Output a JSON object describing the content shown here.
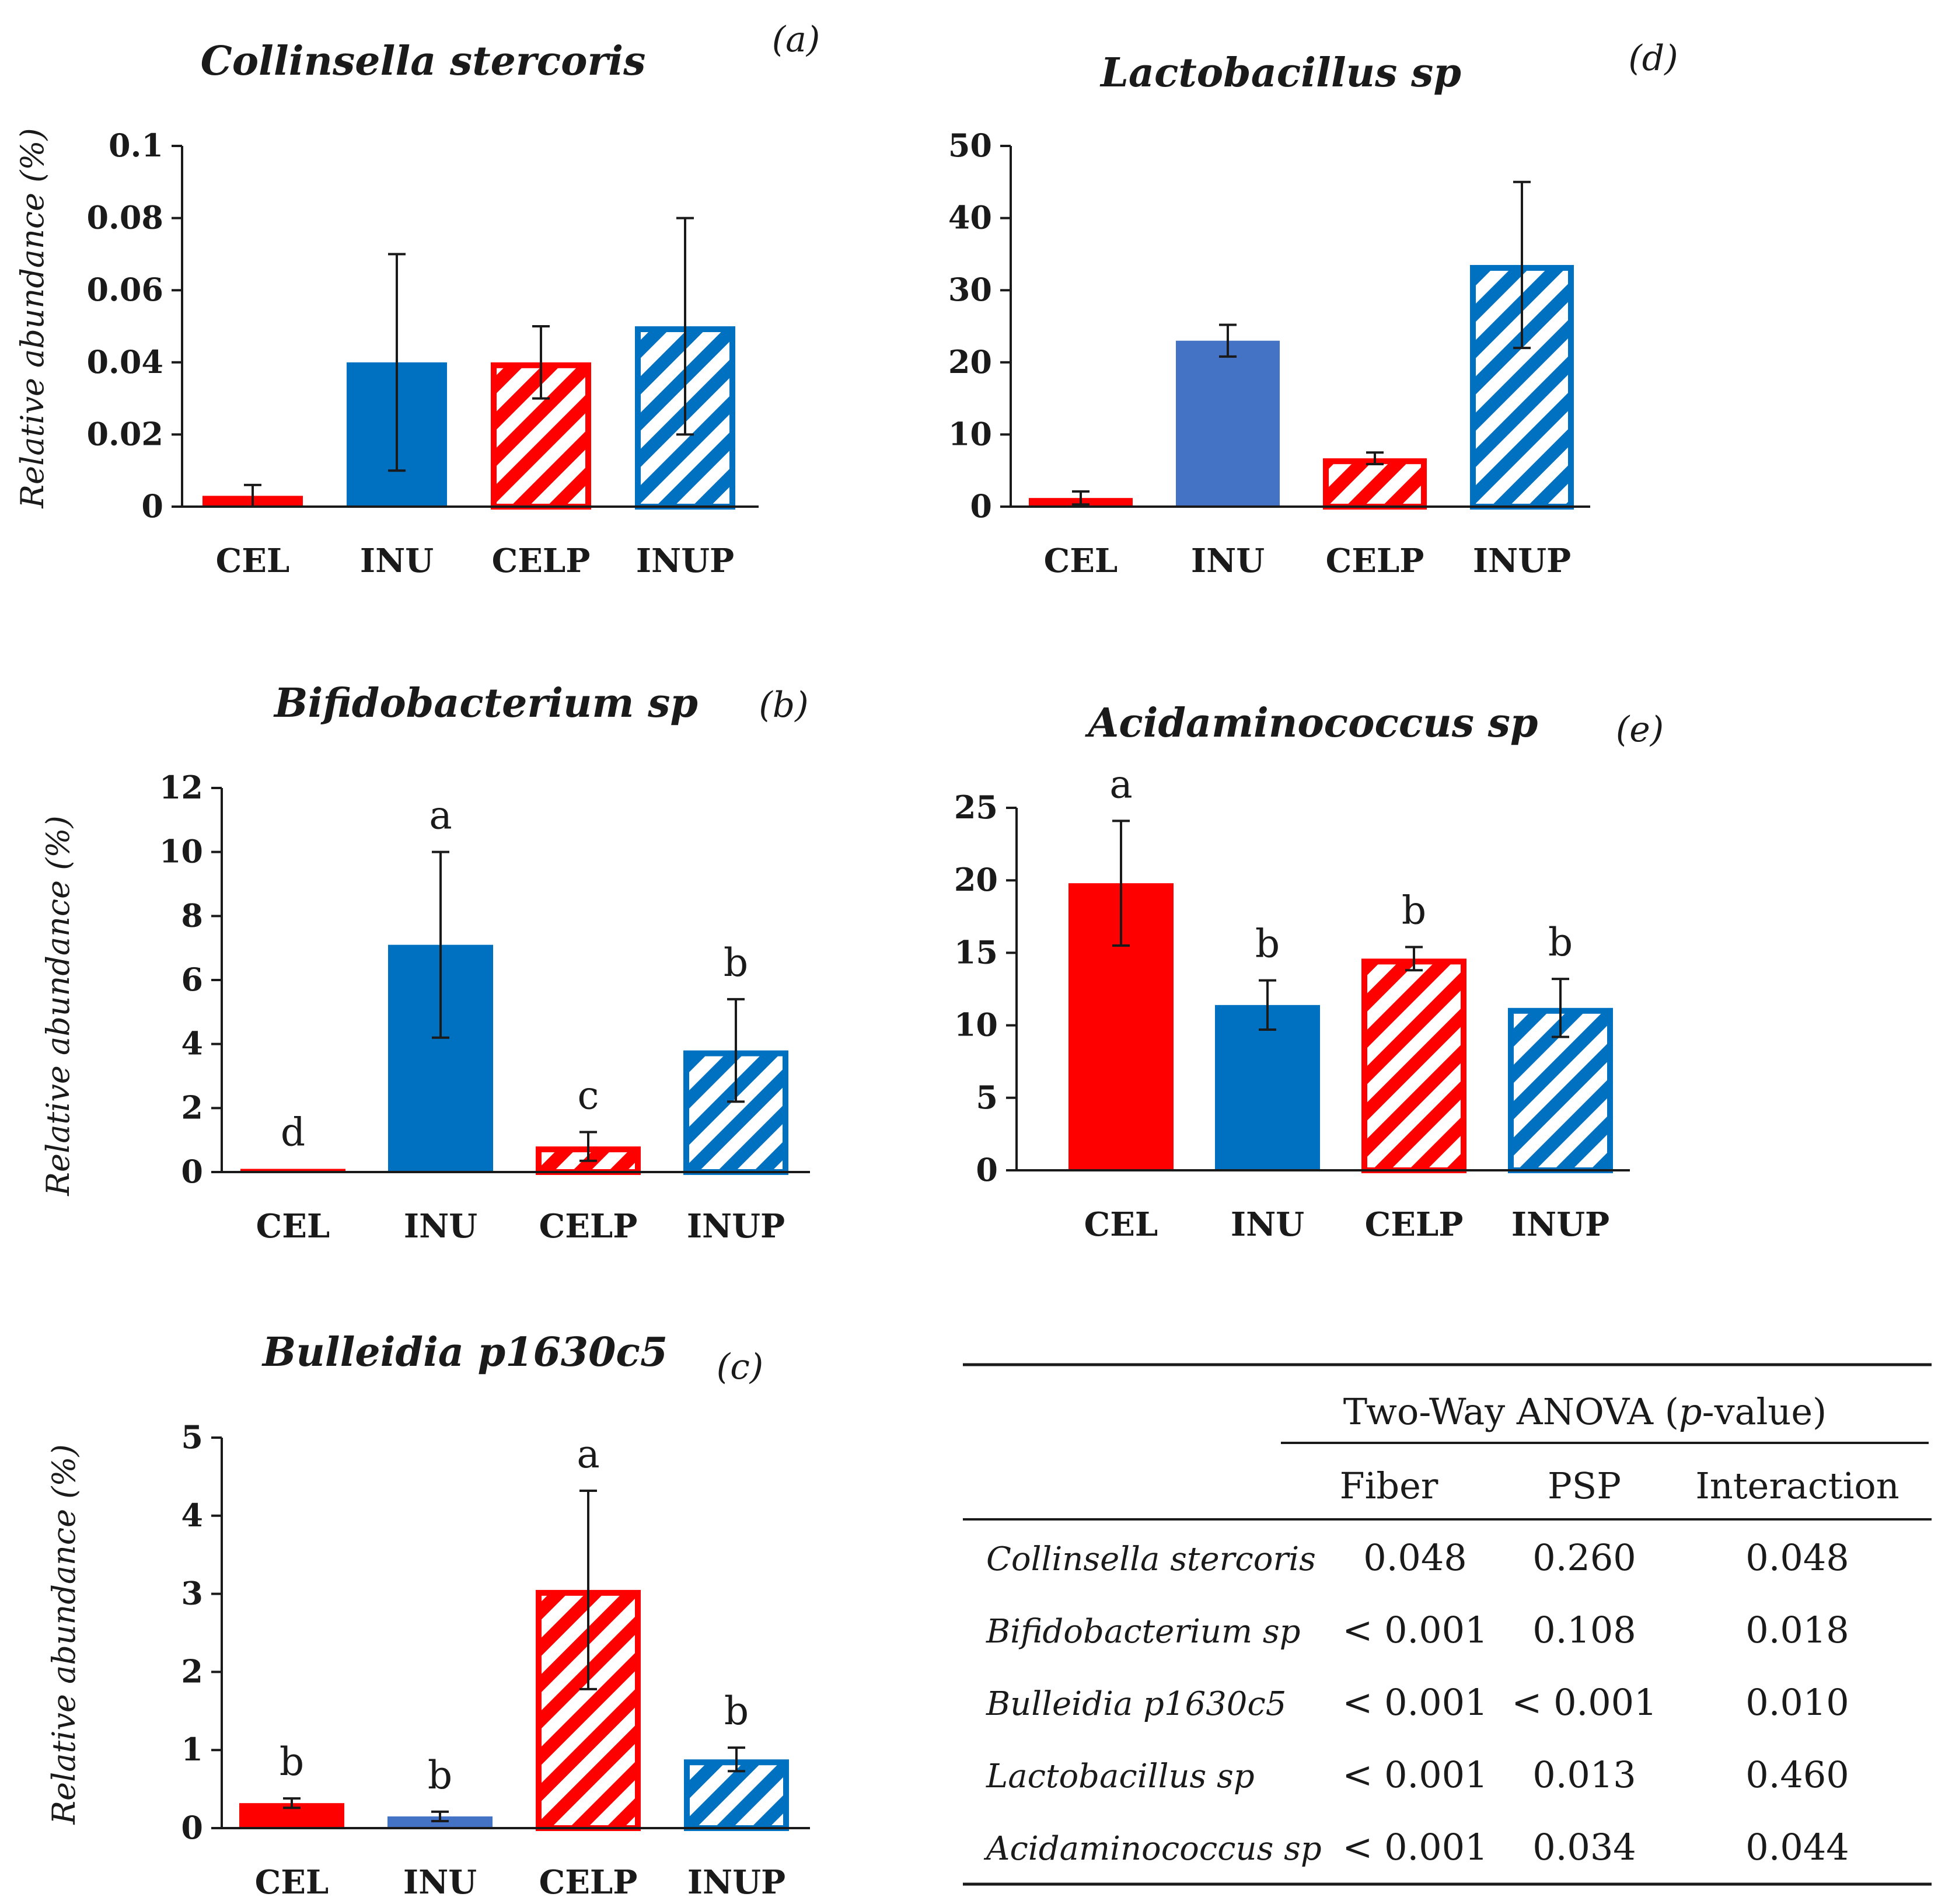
{
  "colors": {
    "red": "#ff0000",
    "blue": "#0070c0",
    "blue_light": "#4472c4",
    "axis": "#1a1a1a"
  },
  "chart_data": [
    {
      "id": "a",
      "type": "bar",
      "panel_label": "(a)",
      "title": "Collinsella stercoris",
      "ylabel": "Relative abundance (%)",
      "ylim": [
        0,
        0.1
      ],
      "yticks": [
        0,
        0.02,
        0.04,
        0.06,
        0.08,
        0.1
      ],
      "ytick_labels": [
        "0",
        "0.02",
        "0.04",
        "0.06",
        "0.08",
        "0.1"
      ],
      "categories": [
        "CEL",
        "INU",
        "CELP",
        "INUP"
      ],
      "values": [
        0.003,
        0.04,
        0.04,
        0.05
      ],
      "errors": [
        0.003,
        0.03,
        0.01,
        0.03
      ],
      "letters": [
        "",
        "",
        "",
        ""
      ],
      "styles": [
        "red",
        "blue",
        "red-hatch",
        "blue-hatch"
      ]
    },
    {
      "id": "b",
      "type": "bar",
      "panel_label": "(b)",
      "title": "Bifidobacterium sp",
      "ylabel": "Relative abundance (%)",
      "ylim": [
        0,
        12
      ],
      "yticks": [
        0,
        2,
        4,
        6,
        8,
        10,
        12
      ],
      "ytick_labels": [
        "0",
        "2",
        "4",
        "6",
        "8",
        "10",
        "12"
      ],
      "categories": [
        "CEL",
        "INU",
        "CELP",
        "INUP"
      ],
      "values": [
        0.1,
        7.1,
        0.8,
        3.8
      ],
      "errors": [
        0,
        2.9,
        0.45,
        1.6
      ],
      "letters": [
        "d",
        "a",
        "c",
        "b"
      ],
      "styles": [
        "red",
        "blue",
        "red-hatch",
        "blue-hatch"
      ]
    },
    {
      "id": "c",
      "type": "bar",
      "panel_label": "(c)",
      "title": "Bulleidia p1630c5",
      "ylabel": "Relative abundance (%)",
      "ylim": [
        0,
        5
      ],
      "yticks": [
        0,
        1,
        2,
        3,
        4,
        5
      ],
      "ytick_labels": [
        "0",
        "1",
        "2",
        "3",
        "4",
        "5"
      ],
      "categories": [
        "CEL",
        "INU",
        "CELP",
        "INUP"
      ],
      "values": [
        0.32,
        0.15,
        3.05,
        0.88
      ],
      "errors": [
        0.06,
        0.06,
        1.27,
        0.15
      ],
      "letters": [
        "b",
        "b",
        "a",
        "b"
      ],
      "styles": [
        "red",
        "blue-light",
        "red-hatch",
        "blue-hatch"
      ]
    },
    {
      "id": "d",
      "type": "bar",
      "panel_label": "(d)",
      "title": "Lactobacillus sp",
      "ylabel": "",
      "ylim": [
        0,
        50
      ],
      "yticks": [
        0,
        10,
        20,
        30,
        40,
        50
      ],
      "ytick_labels": [
        "0",
        "10",
        "20",
        "30",
        "40",
        "50"
      ],
      "categories": [
        "CEL",
        "INU",
        "CELP",
        "INUP"
      ],
      "values": [
        1.2,
        23,
        6.7,
        33.5
      ],
      "errors": [
        0.9,
        2.2,
        0.8,
        11.5
      ],
      "letters": [
        "",
        "",
        "",
        ""
      ],
      "styles": [
        "red",
        "blue-light",
        "red-hatch",
        "blue-hatch"
      ]
    },
    {
      "id": "e",
      "type": "bar",
      "panel_label": "(e)",
      "title": "Acidaminococcus sp",
      "ylabel": "",
      "ylim": [
        0,
        25
      ],
      "yticks": [
        0,
        5,
        10,
        15,
        20,
        25
      ],
      "ytick_labels": [
        "0",
        "5",
        "10",
        "15",
        "20",
        "25"
      ],
      "categories": [
        "CEL",
        "INU",
        "CELP",
        "INUP"
      ],
      "values": [
        19.8,
        11.4,
        14.6,
        11.2
      ],
      "errors": [
        4.3,
        1.7,
        0.8,
        2.0
      ],
      "letters": [
        "a",
        "b",
        "b",
        "b"
      ],
      "styles": [
        "red",
        "blue",
        "red-hatch",
        "blue-hatch"
      ]
    }
  ],
  "anova_table": {
    "header": "Two-Way ANOVA (",
    "header_p": "p",
    "header_tail": "-value)",
    "columns": [
      "Fiber",
      "PSP",
      "Interaction"
    ],
    "rows": [
      {
        "name": "Collinsella stercoris",
        "values": [
          "0.048",
          "0.260",
          "0.048"
        ]
      },
      {
        "name": "Bifidobacterium sp",
        "values": [
          "< 0.001",
          "0.108",
          "0.018"
        ]
      },
      {
        "name": "Bulleidia p1630c5",
        "values": [
          "< 0.001",
          "< 0.001",
          "0.010"
        ]
      },
      {
        "name": "Lactobacillus sp",
        "values": [
          "< 0.001",
          "0.013",
          "0.460"
        ]
      },
      {
        "name": "Acidaminococcus sp",
        "values": [
          "< 0.001",
          "0.034",
          "0.044"
        ]
      }
    ]
  }
}
